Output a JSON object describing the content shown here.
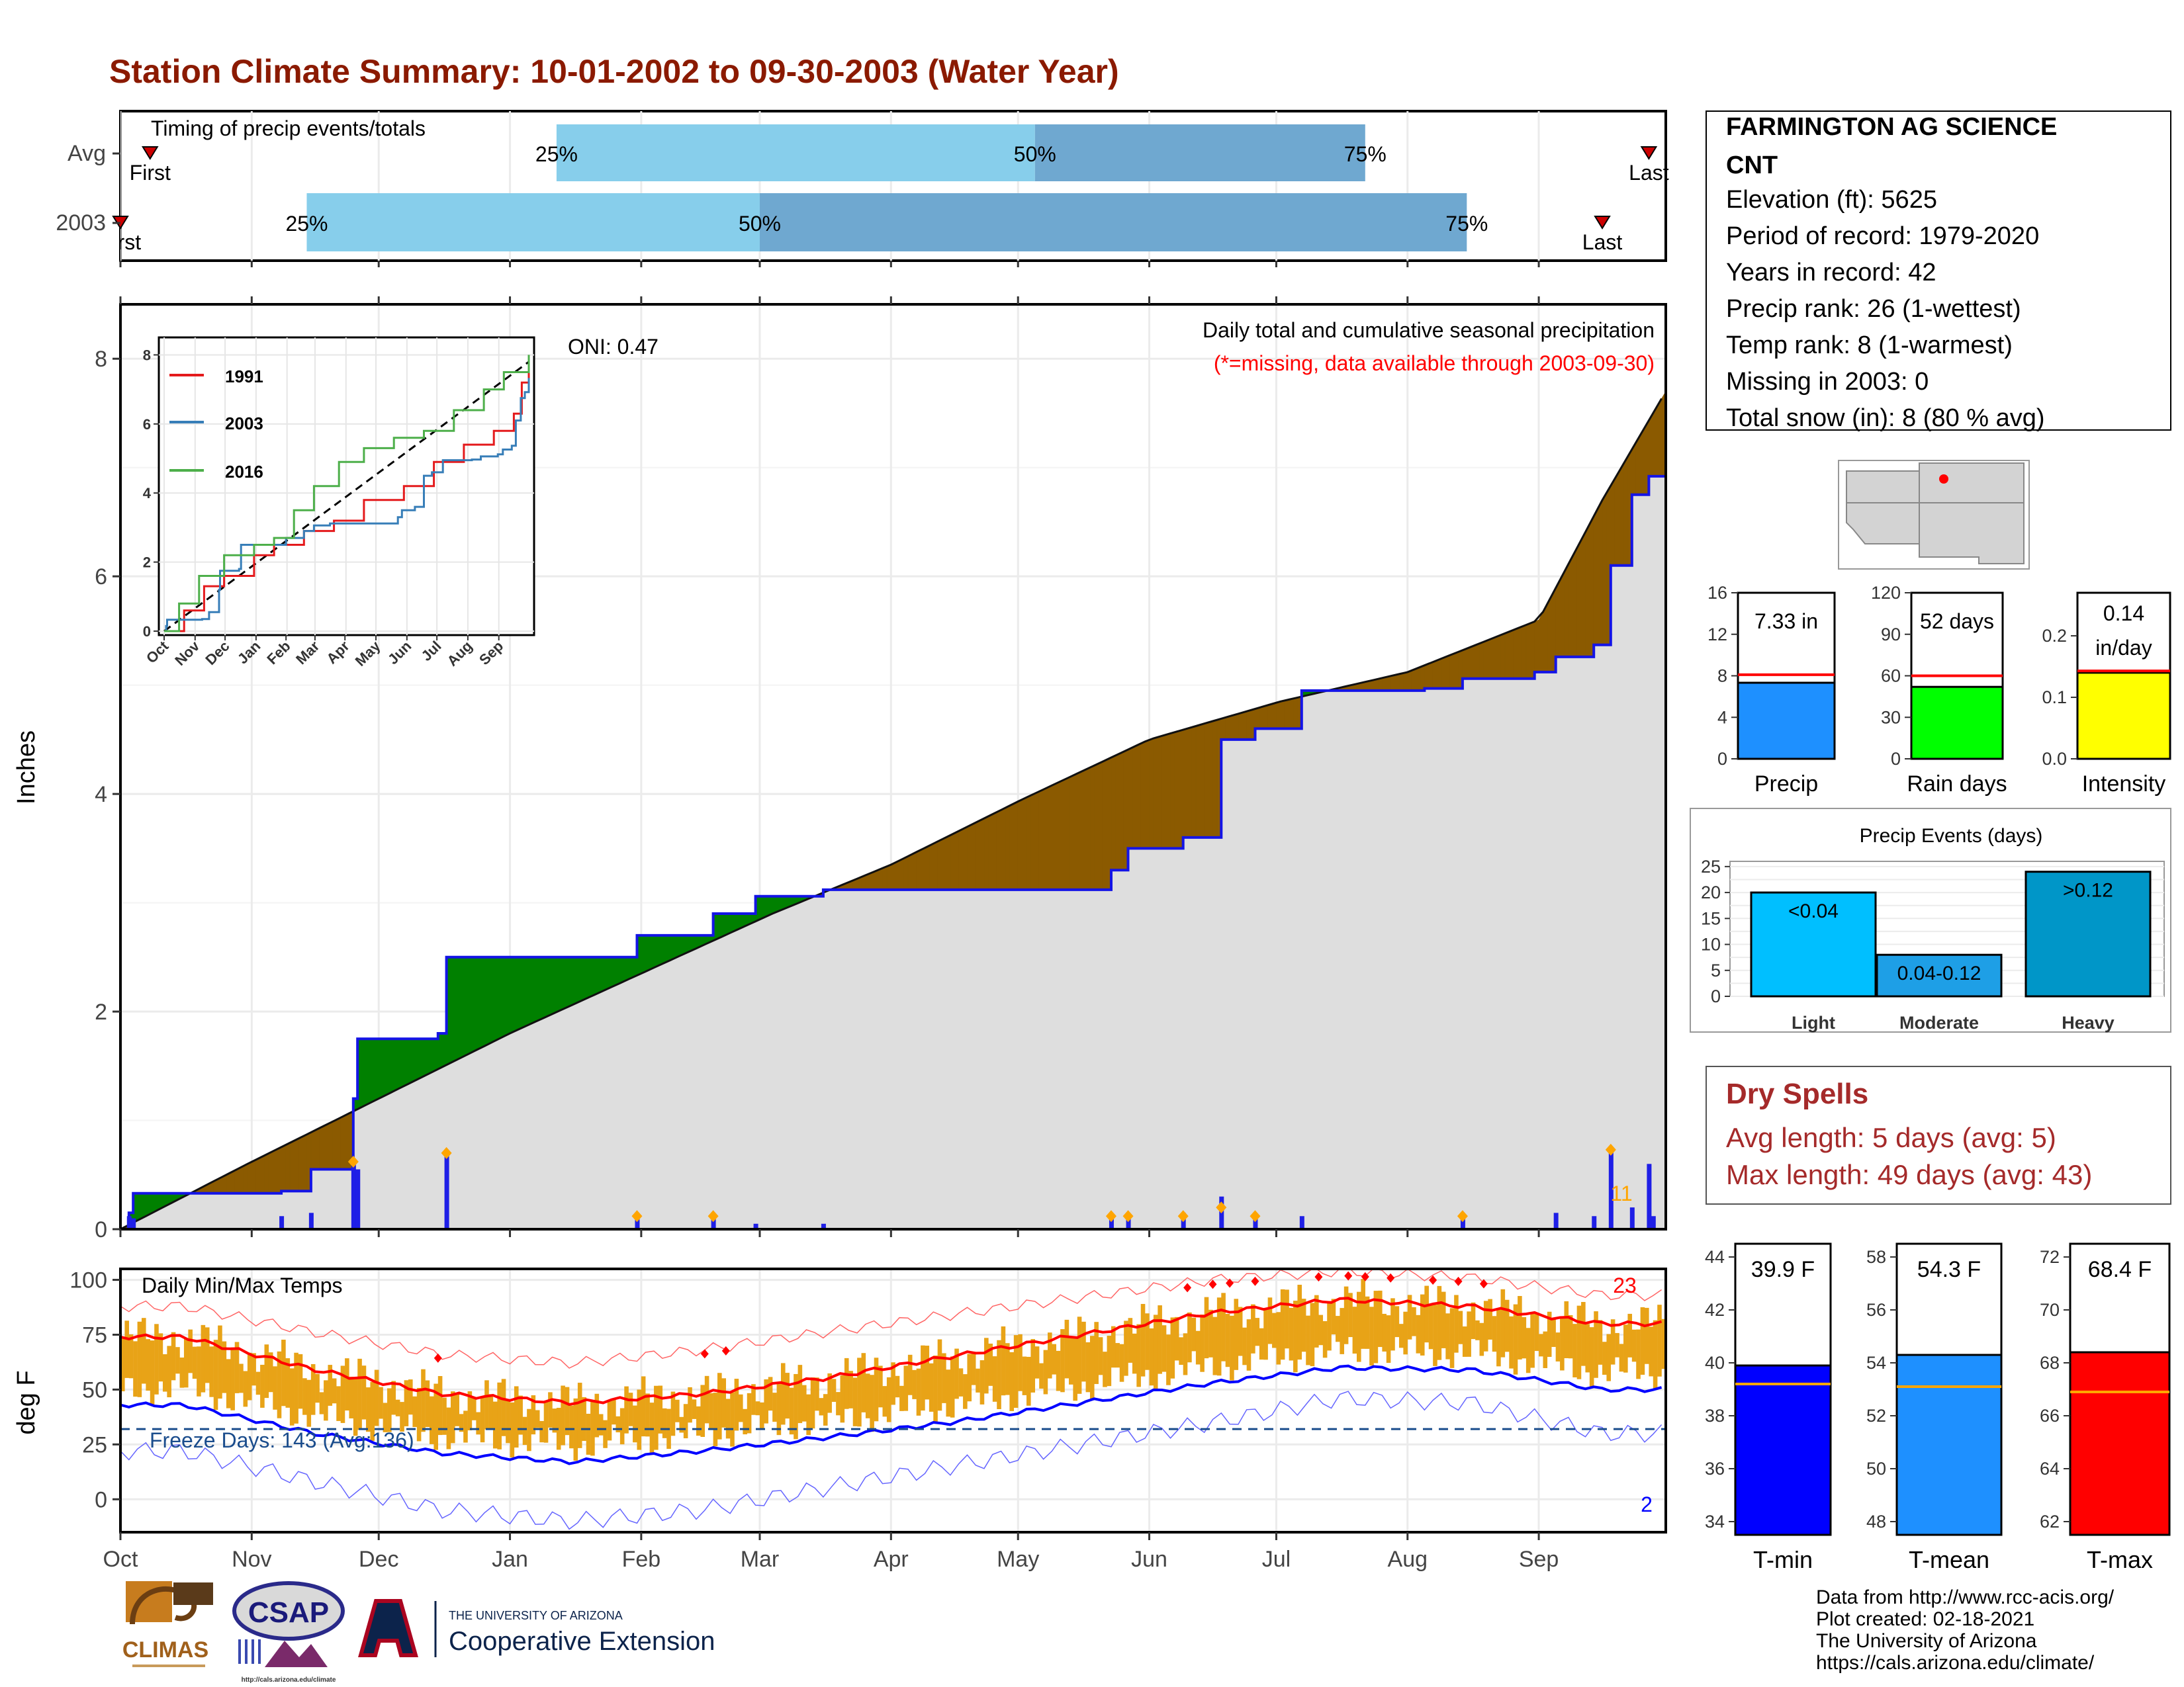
{
  "title": "Station Climate Summary: 10-01-2002 to 09-30-2003 (Water Year)",
  "colors": {
    "title": "#8B1A00",
    "grey_area": "#dedede",
    "green": "#008000",
    "brown": "#8B5A00",
    "blue_line": "#1414e6",
    "bar_blue": "#1f1fe6",
    "orange": "#FFA500",
    "temp_orange": "#E8A317",
    "red": "#ff0000",
    "light_blue": "#87CEEB",
    "mid_blue": "#6fa8d0",
    "dry_red": "#A52A2A"
  },
  "timing_panel": {
    "title": "Timing of precip events/totals",
    "rows": [
      {
        "label": "Avg",
        "first_label": "First",
        "last_label": "Last",
        "p25": "25%",
        "p50": "50%",
        "p75": "75%"
      },
      {
        "label": "2003",
        "first_label": "First",
        "last_label": "Last",
        "p25": "25%",
        "p50": "50%",
        "p75": "75%"
      }
    ]
  },
  "precip_panel": {
    "ylabel": "Inches",
    "title_line1": "Daily total and cumulative seasonal precipitation",
    "title_line2": "(*=missing, data available through 2003-09-30)",
    "oni": "ONI: 0.47",
    "count_label": "11",
    "yticks": [
      "0",
      "2",
      "4",
      "6",
      "8"
    ]
  },
  "inset": {
    "legend": [
      "1991",
      "2003",
      "2016"
    ],
    "yticks": [
      "0",
      "2",
      "4",
      "6",
      "8"
    ],
    "months": [
      "Oct",
      "Nov",
      "Dec",
      "Jan",
      "Feb",
      "Mar",
      "Apr",
      "May",
      "Jun",
      "Jul",
      "Aug",
      "Sep"
    ]
  },
  "temp_panel": {
    "ylabel": "deg F",
    "title": "Daily Min/Max Temps",
    "freeze_label": "Freeze Days: 143 (Avg:136)",
    "count_high": "23",
    "count_low": "2",
    "yticks": [
      "0",
      "25",
      "50",
      "75",
      "100"
    ]
  },
  "months": [
    "Oct",
    "Nov",
    "Dec",
    "Jan",
    "Feb",
    "Mar",
    "Apr",
    "May",
    "Jun",
    "Jul",
    "Aug",
    "Sep"
  ],
  "station": {
    "name_line1": "FARMINGTON AG SCIENCE",
    "name_line2": "CNT",
    "elevation": "Elevation (ft): 5625",
    "period": "Period of record: 1979-2020",
    "years": "Years in record: 42",
    "precip_rank": "Precip rank: 26 (1-wettest)",
    "temp_rank": "Temp rank: 8 (1-warmest)",
    "missing": "Missing in 2003: 0",
    "snow": "Total snow (in): 8 (80 % avg)"
  },
  "mini_precip": [
    {
      "name": "Precip",
      "label_top": "7.33 in",
      "label_top2": "",
      "yticks": [
        "0",
        "4",
        "8",
        "12",
        "16"
      ],
      "color": "#1E90FF"
    },
    {
      "name": "Rain days",
      "label_top": "52 days",
      "label_top2": "",
      "yticks": [
        "0",
        "30",
        "60",
        "90",
        "120"
      ],
      "color": "#00FF00"
    },
    {
      "name": "Intensity",
      "label_top": "0.14",
      "label_top2": "in/day",
      "yticks": [
        "0.0",
        "0.1",
        "0.2"
      ],
      "color": "#FFFF00"
    }
  ],
  "events": {
    "title": "Precip Events (days)",
    "yticks": [
      "0",
      "5",
      "10",
      "15",
      "20",
      "25"
    ],
    "bars": [
      {
        "category": "Light",
        "label": "<0.04",
        "color": "#00BFFF"
      },
      {
        "category": "Moderate",
        "label": "0.04-0.12",
        "color": "#1E9FE6"
      },
      {
        "category": "Heavy",
        "label": ">0.12",
        "color": "#0096C8"
      }
    ]
  },
  "dry_spells": {
    "title": "Dry Spells",
    "avg": "Avg length: 5 days (avg: 5)",
    "max": "Max length: 49 days (avg: 43)"
  },
  "mini_temp": [
    {
      "name": "T-min",
      "label": "39.9 F",
      "yticks": [
        "34",
        "36",
        "38",
        "40",
        "42",
        "44"
      ],
      "color": "#0000FF"
    },
    {
      "name": "T-mean",
      "label": "54.3 F",
      "yticks": [
        "48",
        "50",
        "52",
        "54",
        "56",
        "58"
      ],
      "color": "#1E90FF"
    },
    {
      "name": "T-max",
      "label": "68.4 F",
      "yticks": [
        "62",
        "64",
        "66",
        "68",
        "70",
        "72"
      ],
      "color": "#FF0000"
    }
  ],
  "credits": [
    "Data from http://www.rcc-acis.org/",
    "Plot created: 02-18-2021",
    "The University of Arizona",
    "https://cals.arizona.edu/climate/"
  ],
  "logos": {
    "climas": "CLIMAS",
    "csap": "CSAP",
    "csap_url": "http://cals.arizona.edu/climate",
    "ua_small": "THE UNIVERSITY OF ARIZONA",
    "ua_big": "Cooperative Extension"
  },
  "chart_data": [
    {
      "type": "bar",
      "title": "Timing of precip events/totals",
      "categories": [
        "Avg",
        "2003"
      ],
      "series": [
        {
          "name": "First",
          "values": [
            "Oct 8",
            "Sep 30"
          ]
        },
        {
          "name": "25%",
          "values": [
            "Jan 12",
            "Nov 14"
          ]
        },
        {
          "name": "50%",
          "values": [
            "May 5",
            "Mar 1"
          ]
        },
        {
          "name": "75%",
          "values": [
            "Jul 22",
            "Aug 15"
          ]
        },
        {
          "name": "Last",
          "values": [
            "Sep 27",
            "Sep 16"
          ]
        }
      ]
    },
    {
      "type": "area",
      "title": "Daily total and cumulative seasonal precipitation",
      "ylabel": "Inches",
      "ylim": [
        0,
        8.5
      ],
      "x": [
        "Oct",
        "Nov",
        "Dec",
        "Jan",
        "Feb",
        "Mar",
        "Apr",
        "May",
        "Jun",
        "Jul",
        "Aug",
        "Sep"
      ],
      "series": [
        {
          "name": "2003 cumulative",
          "points": [
            [
              0,
              0
            ],
            [
              2,
              0.15
            ],
            [
              3,
              0.33
            ],
            [
              38,
              0.35
            ],
            [
              45,
              0.55
            ],
            [
              55,
              1.2
            ],
            [
              56,
              1.75
            ],
            [
              75,
              1.8
            ],
            [
              77,
              2.5
            ],
            [
              122,
              2.7
            ],
            [
              140,
              2.9
            ],
            [
              150,
              3.06
            ],
            [
              166,
              3.12
            ],
            [
              234,
              3.3
            ],
            [
              238,
              3.5
            ],
            [
              251,
              3.6
            ],
            [
              260,
              4.5
            ],
            [
              268,
              4.6
            ],
            [
              279,
              4.95
            ],
            [
              308,
              4.97
            ],
            [
              317,
              5.06
            ],
            [
              334,
              5.12
            ],
            [
              339,
              5.26
            ],
            [
              348,
              5.37
            ],
            [
              352,
              6.1
            ],
            [
              357,
              6.75
            ],
            [
              361,
              6.92
            ],
            [
              365,
              7.33
            ]
          ]
        },
        {
          "name": "Avg cumulative",
          "points": [
            [
              0,
              0
            ],
            [
              30,
              0.6
            ],
            [
              61,
              1.2
            ],
            [
              92,
              1.8
            ],
            [
              123,
              2.35
            ],
            [
              154,
              2.9
            ],
            [
              182,
              3.35
            ],
            [
              213,
              3.95
            ],
            [
              243,
              4.5
            ],
            [
              274,
              4.85
            ],
            [
              304,
              5.12
            ],
            [
              335,
              5.6
            ],
            [
              350,
              6.7
            ],
            [
              365,
              7.7
            ]
          ]
        }
      ],
      "daily_totals": [
        [
          2,
          0.12
        ],
        [
          3,
          0.1
        ],
        [
          38,
          0.12
        ],
        [
          45,
          0.15
        ],
        [
          55,
          0.62
        ],
        [
          56,
          0.55
        ],
        [
          77,
          0.7
        ],
        [
          122,
          0.12
        ],
        [
          140,
          0.12
        ],
        [
          150,
          0.05
        ],
        [
          166,
          0.05
        ],
        [
          234,
          0.12
        ],
        [
          238,
          0.12
        ],
        [
          251,
          0.15
        ],
        [
          260,
          0.3
        ],
        [
          268,
          0.1
        ],
        [
          279,
          0.12
        ],
        [
          317,
          0.1
        ],
        [
          339,
          0.15
        ],
        [
          348,
          0.12
        ],
        [
          352,
          0.73
        ],
        [
          357,
          0.2
        ],
        [
          361,
          0.6
        ],
        [
          362,
          0.12
        ]
      ]
    },
    {
      "type": "line",
      "title": "Daily Min/Max Temps",
      "ylabel": "deg F",
      "ylim": [
        -15,
        105
      ],
      "x": [
        "Oct",
        "Nov",
        "Dec",
        "Jan",
        "Feb",
        "Mar",
        "Apr",
        "May",
        "Jun",
        "Jul",
        "Aug",
        "Sep"
      ],
      "series": [
        {
          "name": "Avg max",
          "values": [
            74,
            59,
            48,
            44,
            48,
            55,
            65,
            75,
            85,
            91,
            88,
            80
          ]
        },
        {
          "name": "Avg min",
          "values": [
            43,
            30,
            21,
            17,
            22,
            28,
            35,
            44,
            53,
            60,
            59,
            50
          ]
        },
        {
          "name": "Record max",
          "values": [
            88,
            76,
            66,
            62,
            68,
            76,
            84,
            92,
            100,
            104,
            101,
            93
          ]
        },
        {
          "name": "Record min",
          "values": [
            22,
            8,
            -5,
            -10,
            -5,
            5,
            15,
            25,
            35,
            46,
            44,
            30
          ]
        }
      ],
      "freeze_line": 32
    },
    {
      "type": "bar",
      "categories": [
        "Precip"
      ],
      "values": [
        7.33
      ],
      "avg": 8.1,
      "ylim": [
        0,
        16
      ]
    },
    {
      "type": "bar",
      "categories": [
        "Rain days"
      ],
      "values": [
        52
      ],
      "avg": 60,
      "ylim": [
        0,
        120
      ]
    },
    {
      "type": "bar",
      "categories": [
        "Intensity"
      ],
      "values": [
        0.14
      ],
      "avg": 0.143,
      "ylim": [
        0,
        0.27
      ]
    },
    {
      "type": "bar",
      "title": "Precip Events (days)",
      "categories": [
        "Light",
        "Moderate",
        "Heavy"
      ],
      "values": [
        20,
        8,
        24
      ],
      "ylim": [
        0,
        26
      ]
    },
    {
      "type": "bar",
      "categories": [
        "T-min"
      ],
      "values": [
        39.9
      ],
      "avg": 39.2,
      "ylim": [
        33.5,
        44.5
      ]
    },
    {
      "type": "bar",
      "categories": [
        "T-mean"
      ],
      "values": [
        54.3
      ],
      "avg": 53.1,
      "ylim": [
        47.5,
        58.5
      ]
    },
    {
      "type": "bar",
      "categories": [
        "T-max"
      ],
      "values": [
        68.4
      ],
      "avg": 66.9,
      "ylim": [
        61.5,
        72.5
      ]
    }
  ]
}
